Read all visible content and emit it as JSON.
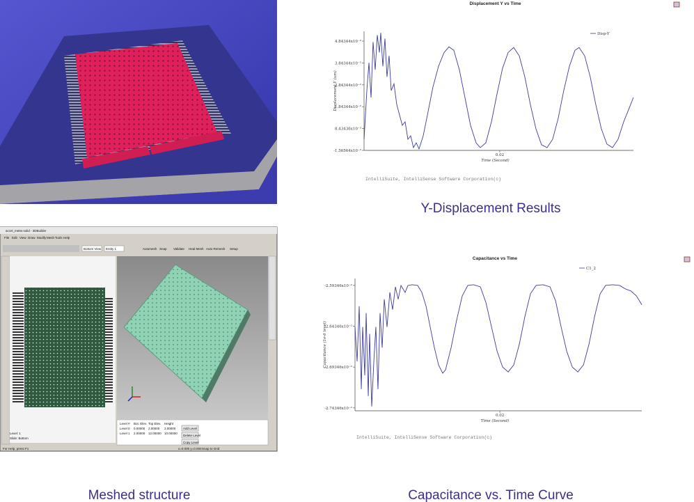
{
  "chart_data": [
    {
      "type": "line",
      "title": "Displacement Y vs Time",
      "xlabel": "Time (Second)",
      "ylabel": "Displacement Y (um)",
      "note": "IntelliSuite, IntelliSense Software Corporation(c)",
      "x": [
        0,
        0.00041,
        0.00072,
        0.00103,
        0.00133,
        0.00164,
        0.00195,
        0.00226,
        0.00246,
        0.00277,
        0.00308,
        0.00338,
        0.00369,
        0.004,
        0.00441,
        0.00482,
        0.00523,
        0.00564,
        0.00605,
        0.00646,
        0.00687,
        0.00728,
        0.00769,
        0.0081,
        0.00872,
        0.00944,
        0.01015,
        0.01097,
        0.01179,
        0.01251,
        0.01323,
        0.01405,
        0.01487,
        0.01569,
        0.01651,
        0.01713,
        0.01795,
        0.01877,
        0.01959,
        0.02041,
        0.02123,
        0.02205,
        0.02287,
        0.02369,
        0.02451,
        0.02533,
        0.02615,
        0.02697,
        0.02779,
        0.02861,
        0.02943,
        0.03026,
        0.03108,
        0.03169,
        0.03251,
        0.03333,
        0.03415,
        0.03497,
        0.03579,
        0.03661,
        0.03743,
        0.03826,
        0.03908,
        0.03969
      ],
      "series": [
        {
          "name": "Disp-Y",
          "color": "#3b3b9e",
          "values": [
            0.0035,
            0.0258,
            0.0385,
            0.0226,
            0.048,
            0.0353,
            0.0512,
            0.0432,
            0.0522,
            0.0369,
            0.0496,
            0.0321,
            0.0417,
            0.0258,
            0.0289,
            0.0194,
            0.0146,
            0.0099,
            0.0115,
            0.0035,
            0.0051,
            -0.0003,
            0.0019,
            -0.0009,
            0.0051,
            0.0162,
            0.0274,
            0.0369,
            0.0432,
            0.0458,
            0.0442,
            0.0353,
            0.0226,
            0.0099,
            0.0019,
            -0.0003,
            0.0019,
            0.0115,
            0.0242,
            0.036,
            0.0432,
            0.0455,
            0.0417,
            0.0321,
            0.0194,
            0.0083,
            0.001,
            -0.0003,
            0.0035,
            0.0131,
            0.0258,
            0.0369,
            0.0442,
            0.0455,
            0.0417,
            0.0321,
            0.0194,
            0.0083,
            0.0013,
            -0.0003,
            0.0035,
            0.0115,
            0.0178,
            0.0226
          ]
        }
      ],
      "xlim": [
        0,
        0.0397
      ],
      "xticks": [
        0.02
      ],
      "ylim": [
        -0.00156564,
        0.0529
      ],
      "yticks": [
        {
          "value": 0.0484344,
          "label": "4.84344x10⁻²"
        },
        {
          "value": 0.0384344,
          "label": "3.84344x10⁻²"
        },
        {
          "value": 0.0284344,
          "label": "2.84344x10⁻²"
        },
        {
          "value": 0.0184344,
          "label": "1.84344x10⁻²"
        },
        {
          "value": 0.00843436,
          "label": "8.43436x10⁻³"
        },
        {
          "value": -0.00156564,
          "label": "-1.56564x10⁻³"
        }
      ]
    },
    {
      "type": "line",
      "title": "Capacitance vs Time",
      "xlabel": "Time (Second)",
      "ylabel": "Capacitance (1e-6 level)",
      "note": "IntelliSuite, IntelliSense Software Corporation(c)",
      "x": [
        0,
        0.00029,
        0.00058,
        0.00087,
        0.00106,
        0.00135,
        0.00154,
        0.00183,
        0.00202,
        0.00231,
        0.0026,
        0.00288,
        0.00317,
        0.00346,
        0.00375,
        0.00404,
        0.00442,
        0.00481,
        0.00519,
        0.00558,
        0.00596,
        0.00635,
        0.00692,
        0.00731,
        0.00788,
        0.00865,
        0.00923,
        0.00981,
        0.01038,
        0.01096,
        0.01154,
        0.01211,
        0.0125,
        0.01327,
        0.01404,
        0.01481,
        0.01558,
        0.01635,
        0.01731,
        0.01808,
        0.01885,
        0.01962,
        0.02038,
        0.02115,
        0.02192,
        0.02269,
        0.02346,
        0.02423,
        0.025,
        0.02596,
        0.02692,
        0.02769,
        0.02846,
        0.02923,
        0.03,
        0.03077,
        0.03154,
        0.03231,
        0.03308,
        0.03385,
        0.03461,
        0.03558,
        0.03654,
        0.03731,
        0.03808,
        0.03885,
        0.03961
      ],
      "series": [
        {
          "name": "C1_2",
          "color": "#3b3b9e",
          "values": [
            -0.026443,
            -0.026866,
            -0.026189,
            -0.027205,
            -0.026443,
            -0.027036,
            -0.026273,
            -0.02729,
            -0.026528,
            -0.027417,
            -0.026866,
            -0.026443,
            -0.027205,
            -0.026273,
            -0.026697,
            -0.026104,
            -0.026443,
            -0.02602,
            -0.026231,
            -0.025952,
            -0.026104,
            -0.025935,
            -0.02602,
            -0.025935,
            -0.025926,
            -0.025935,
            -0.02602,
            -0.026189,
            -0.026443,
            -0.026697,
            -0.026909,
            -0.02701,
            -0.026968,
            -0.026697,
            -0.026358,
            -0.026062,
            -0.025935,
            -0.025926,
            -0.025952,
            -0.026146,
            -0.026443,
            -0.02674,
            -0.026934,
            -0.026994,
            -0.026909,
            -0.026655,
            -0.026316,
            -0.026036,
            -0.025935,
            -0.025926,
            -0.025952,
            -0.026121,
            -0.026443,
            -0.02674,
            -0.026934,
            -0.026994,
            -0.026909,
            -0.026655,
            -0.026316,
            -0.026036,
            -0.025935,
            -0.025926,
            -0.025935,
            -0.025977,
            -0.026002,
            -0.026062,
            -0.026172
          ]
        }
      ],
      "xlim": [
        0,
        0.0396
      ],
      "xticks": [
        0.02
      ],
      "ylim": [
        -0.02747,
        -0.02585
      ],
      "yticks": [
        {
          "value": -0.0259346,
          "label": "-2.59346x10⁻²"
        },
        {
          "value": -0.0264346,
          "label": "-2.64346x10⁻²"
        },
        {
          "value": -0.0269346,
          "label": "-2.69346x10⁻²"
        },
        {
          "value": -0.0274346,
          "label": "-2.74346x10⁻²"
        }
      ]
    }
  ],
  "captions": {
    "displacement": "Y-Displacement  Results",
    "mesh": "Meshed structure",
    "capacitance": "Capacitance vs. Time Curve"
  },
  "screenshot": {
    "title": "accel_meter.solid - 3DBuilder",
    "menu": [
      "File",
      "Edit",
      "View",
      "Draw",
      "Modify",
      "Mesh",
      "Tools",
      "Help"
    ],
    "toolbar": [
      "Bottom View",
      "Entity 1",
      "Automesh",
      "Snap",
      "Validate",
      "Heal Mesh",
      "Auto Remesh",
      "Setup"
    ],
    "level": "Level: 1",
    "slide": "Slide: Bottom",
    "table": {
      "header": [
        "Level #",
        "Bot. Elev.",
        "Top Elev.",
        "Height"
      ],
      "rows": [
        [
          "Level 0",
          "0.00000",
          "2.00000",
          "2.00000"
        ],
        [
          "Level 1",
          "2.00000",
          "12.00000",
          "10.00000"
        ]
      ]
    },
    "buttons": [
      "Add Level",
      "Delete Level",
      "Copy Level"
    ],
    "status": [
      "For Help, press F1",
      "x=0.000 y=0.000",
      "Snap to Grid"
    ]
  }
}
